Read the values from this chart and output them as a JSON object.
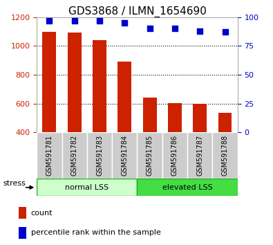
{
  "title": "GDS3868 / ILMN_1654690",
  "samples": [
    "GSM591781",
    "GSM591782",
    "GSM591783",
    "GSM591784",
    "GSM591785",
    "GSM591786",
    "GSM591787",
    "GSM591788"
  ],
  "counts": [
    1100,
    1095,
    1040,
    890,
    640,
    605,
    597,
    535
  ],
  "percentile_ranks": [
    97,
    97,
    97,
    95,
    90,
    90,
    88,
    87
  ],
  "bar_color": "#cc2200",
  "dot_color": "#0000cc",
  "ylim_left": [
    400,
    1200
  ],
  "ylim_right": [
    0,
    100
  ],
  "yticks_left": [
    400,
    600,
    800,
    1000,
    1200
  ],
  "yticks_right": [
    0,
    25,
    50,
    75,
    100
  ],
  "group1_label": "normal LSS",
  "group2_label": "elevated LSS",
  "group1_count": 4,
  "group2_count": 4,
  "stress_label": "stress",
  "legend_count": "count",
  "legend_percentile": "percentile rank within the sample",
  "group1_color": "#ccffcc",
  "group2_color": "#44dd44",
  "group_border_color": "#22aa22",
  "tick_label_area_color": "#cccccc",
  "bar_bottom": 400,
  "dotted_grid_color": "#000000",
  "title_fontsize": 11,
  "tick_fontsize": 8,
  "legend_fontsize": 8,
  "sample_fontsize": 7,
  "group_fontsize": 8,
  "stress_fontsize": 8
}
